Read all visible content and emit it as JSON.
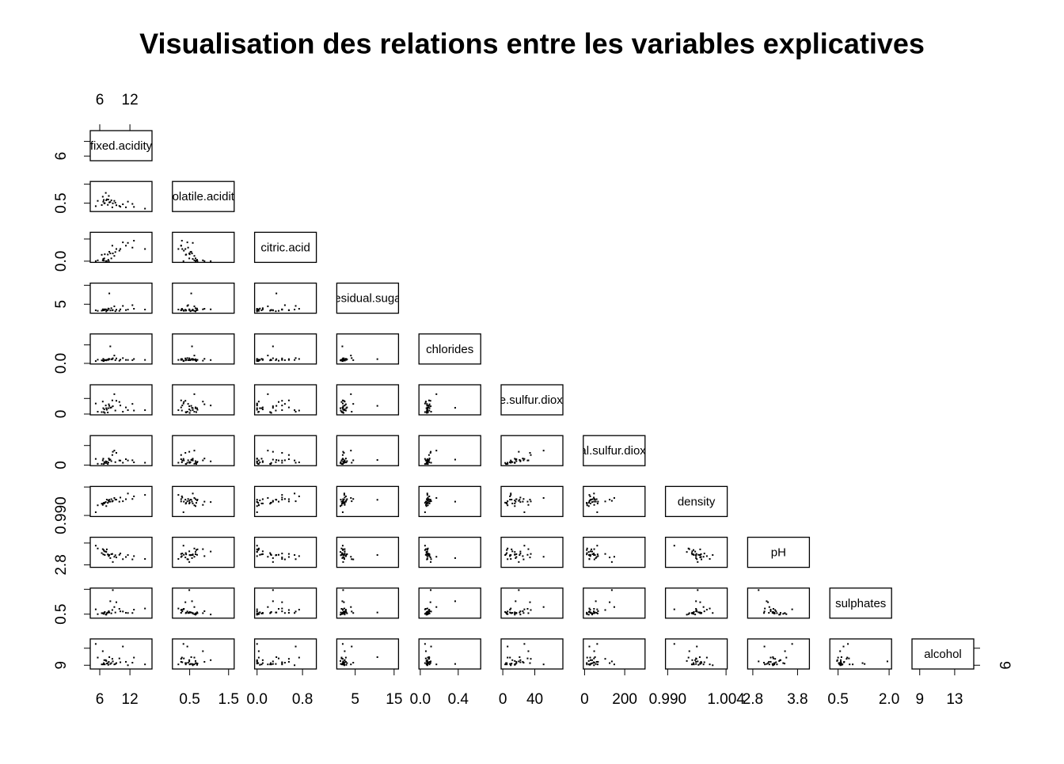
{
  "chart_data": {
    "type": "scatter-matrix",
    "title": "Visualisation des relations entre les variables explicatives",
    "point_color": "#000000",
    "variables": [
      {
        "name": "fixed.acidity",
        "lim": [
          4.6,
          15.9
        ],
        "ticks": [
          6,
          12
        ],
        "values": [
          7.4,
          7.8,
          11.2,
          7.3,
          8.5,
          6.7,
          5.6,
          9.9,
          12.8,
          6.9,
          10.6,
          8.1,
          7.0,
          15.0,
          9.3,
          6.4,
          8.9,
          7.6,
          11.6,
          5.2,
          8.3,
          7.2,
          10.1,
          6.8,
          7.9,
          8.6,
          12.5,
          7.7,
          9.1,
          6.6
        ]
      },
      {
        "name": "volatile.acidity",
        "lim": [
          0.12,
          1.58
        ],
        "ticks": [
          0.5,
          1.5
        ],
        "values": [
          0.7,
          0.88,
          0.28,
          0.65,
          0.28,
          0.58,
          0.62,
          0.35,
          0.3,
          0.49,
          0.44,
          0.56,
          0.5,
          0.21,
          0.39,
          0.4,
          0.62,
          0.41,
          0.58,
          0.34,
          0.65,
          1.04,
          0.31,
          0.67,
          0.54,
          0.49,
          0.46,
          0.69,
          0.52,
          0.84
        ]
      },
      {
        "name": "citric.acid",
        "lim": [
          0,
          1
        ],
        "ticks": [
          {
            "value": 0,
            "label": "0.0"
          },
          0.8
        ],
        "values": [
          0.0,
          0.0,
          0.56,
          0.0,
          0.56,
          0.08,
          0.03,
          0.38,
          0.74,
          0.1,
          0.68,
          0.28,
          0.25,
          0.44,
          0.44,
          0.23,
          0.19,
          0.24,
          0.66,
          0.0,
          0.1,
          0.0,
          0.44,
          0.02,
          0.34,
          0.28,
          0.49,
          0.05,
          0.33,
          0.03
        ]
      },
      {
        "name": "residual.sugar",
        "lim": [
          0.9,
          15.5
        ],
        "ticks": [
          5,
          15
        ],
        "values": [
          1.9,
          2.6,
          1.9,
          1.2,
          1.8,
          1.8,
          1.5,
          1.5,
          2.6,
          2.3,
          4.1,
          1.7,
          2.0,
          2.2,
          2.1,
          1.6,
          3.9,
          1.8,
          2.2,
          1.8,
          2.9,
          2.3,
          2.3,
          1.8,
          10.7,
          1.9,
          4.5,
          2.7,
          1.3,
          2.3
        ]
      },
      {
        "name": "chlorides",
        "lim": [
          0.012,
          0.611
        ],
        "ticks": [
          {
            "value": 0,
            "label": "0.0"
          },
          0.4
        ],
        "values": [
          0.076,
          0.098,
          0.075,
          0.065,
          0.092,
          0.097,
          0.08,
          0.058,
          0.095,
          0.074,
          0.114,
          0.368,
          0.07,
          0.075,
          0.107,
          0.066,
          0.17,
          0.08,
          0.074,
          0.05,
          0.089,
          0.072,
          0.08,
          0.05,
          0.092,
          0.11,
          0.07,
          0.075,
          0.07,
          0.059
        ]
      },
      {
        "name": "free.sulfur.dioxide",
        "lim": [
          1,
          72
        ],
        "ticks": [
          0,
          40
        ],
        "values": [
          11,
          25,
          17,
          15,
          35,
          15,
          6,
          31,
          9,
          12,
          6,
          16,
          3,
          10,
          34,
          5,
          51,
          4,
          10,
          27,
          17,
          22,
          22,
          5,
          21,
          20,
          26,
          15,
          9,
          32
        ]
      },
      {
        "name": "total.sulfur.dioxide",
        "lim": [
          6,
          289
        ],
        "ticks": [
          0,
          200
        ],
        "values": [
          34,
          67,
          60,
          21,
          103,
          65,
          13,
          47,
          28,
          30,
          24,
          56,
          22,
          24,
          125,
          12,
          148,
          11,
          47,
          63,
          40,
          38,
          46,
          11,
          52,
          136,
          49,
          27,
          30,
          48
        ]
      },
      {
        "name": "density",
        "lim": [
          0.99007,
          1.00369
        ],
        "ticks": [
          {
            "value": 0.99,
            "label": "0.990"
          },
          1.004
        ],
        "values": [
          0.9978,
          0.9968,
          0.998,
          0.9946,
          0.9969,
          0.9959,
          0.995,
          0.9968,
          0.9994,
          0.9959,
          0.997,
          0.9968,
          0.9963,
          1.0001,
          0.9978,
          0.9958,
          0.9986,
          0.9962,
          1.0008,
          0.9916,
          0.998,
          0.9966,
          0.9988,
          0.9962,
          0.9977,
          0.9972,
          0.9981,
          0.9974,
          0.9978,
          0.9952
        ]
      },
      {
        "name": "pH",
        "lim": [
          2.74,
          4.01
        ],
        "ticks": [
          2.8,
          3.8
        ],
        "values": [
          3.51,
          3.2,
          3.16,
          3.39,
          3.3,
          3.28,
          3.55,
          3.26,
          3.2,
          3.42,
          3.06,
          3.11,
          3.25,
          3.07,
          3.14,
          3.34,
          3.17,
          3.28,
          3.25,
          3.68,
          3.29,
          3.41,
          3.32,
          3.48,
          3.25,
          2.93,
          3.05,
          3.26,
          3.24,
          3.52
        ]
      },
      {
        "name": "sulphates",
        "lim": [
          0.33,
          2.0
        ],
        "ticks": [
          0.5,
          {
            "value": 2,
            "label": "2.0"
          }
        ],
        "values": [
          0.56,
          0.68,
          0.58,
          0.47,
          0.75,
          0.54,
          0.5,
          0.82,
          0.77,
          0.58,
          0.66,
          1.28,
          0.63,
          0.84,
          1.22,
          0.56,
          0.93,
          0.59,
          0.57,
          0.79,
          0.55,
          0.48,
          0.67,
          0.52,
          0.6,
          1.95,
          0.57,
          0.61,
          0.6,
          0.56
        ]
      },
      {
        "name": "alcohol",
        "lim": [
          8.4,
          14.9
        ],
        "ticks": [
          9,
          13
        ],
        "values": [
          9.4,
          9.8,
          9.8,
          10.0,
          10.5,
          9.2,
          10.8,
          10.6,
          10.8,
          10.2,
          13.4,
          9.3,
          9.2,
          9.2,
          9.5,
          9.2,
          9.2,
          9.5,
          9.0,
          14.0,
          9.5,
          10.2,
          9.7,
          9.5,
          10.9,
          9.9,
          9.6,
          9.1,
          9.3,
          12.3
        ]
      }
    ]
  }
}
